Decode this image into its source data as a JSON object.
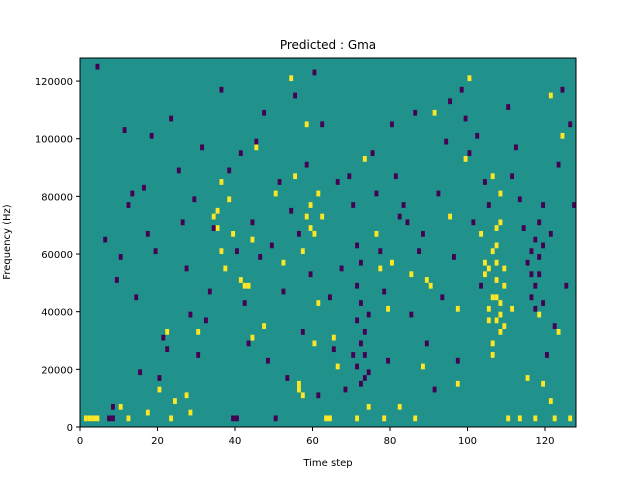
{
  "chart_data": {
    "type": "heatmap",
    "title": "Predicted : Gma",
    "xlabel": "Time step",
    "ylabel": "Frequency (Hz)",
    "xlim": [
      0,
      128
    ],
    "ylim": [
      0,
      128000
    ],
    "xticks": [
      0,
      20,
      40,
      60,
      80,
      100,
      120
    ],
    "yticks": [
      0,
      20000,
      40000,
      60000,
      80000,
      100000,
      120000
    ],
    "ytick_labels": [
      "0",
      "20000",
      "40000",
      "60000",
      "80000",
      "100000",
      "120000"
    ],
    "grid": false,
    "legend": "none",
    "n_time_steps": 128,
    "n_freq_bins": 64,
    "colormap": "viridis",
    "background_value": 0,
    "colors": {
      "low": "#440154",
      "mid": "#21918c",
      "high": "#fde725"
    },
    "cells": {
      "high": [
        [
          1,
          1
        ],
        [
          2,
          1
        ],
        [
          3,
          1
        ],
        [
          4,
          1
        ],
        [
          10,
          3
        ],
        [
          12,
          1
        ],
        [
          17,
          2
        ],
        [
          20,
          6
        ],
        [
          22,
          16
        ],
        [
          23,
          1
        ],
        [
          24,
          4
        ],
        [
          27,
          5
        ],
        [
          28,
          2
        ],
        [
          30,
          16
        ],
        [
          34,
          36
        ],
        [
          35,
          34
        ],
        [
          35,
          37
        ],
        [
          36,
          30
        ],
        [
          36,
          42
        ],
        [
          37,
          27
        ],
        [
          38,
          39
        ],
        [
          39,
          33
        ],
        [
          41,
          25
        ],
        [
          42,
          24
        ],
        [
          43,
          24
        ],
        [
          44,
          15
        ],
        [
          44,
          32
        ],
        [
          45,
          48
        ],
        [
          47,
          17
        ],
        [
          50,
          40
        ],
        [
          52,
          28
        ],
        [
          54,
          60
        ],
        [
          55,
          43
        ],
        [
          56,
          6
        ],
        [
          56,
          7
        ],
        [
          57,
          5
        ],
        [
          57,
          30
        ],
        [
          58,
          36
        ],
        [
          58,
          52
        ],
        [
          59,
          38
        ],
        [
          59,
          34
        ],
        [
          60,
          14
        ],
        [
          60,
          33
        ],
        [
          61,
          21
        ],
        [
          61,
          40
        ],
        [
          62,
          36
        ],
        [
          63,
          1
        ],
        [
          64,
          1
        ],
        [
          65,
          15
        ],
        [
          66,
          10
        ],
        [
          71,
          1
        ],
        [
          73,
          46
        ],
        [
          74,
          3
        ],
        [
          76,
          33
        ],
        [
          77,
          27
        ],
        [
          78,
          1
        ],
        [
          79,
          20
        ],
        [
          80,
          28
        ],
        [
          82,
          3
        ],
        [
          85,
          26
        ],
        [
          86,
          1
        ],
        [
          88,
          10
        ],
        [
          89,
          25
        ],
        [
          90,
          24
        ],
        [
          91,
          54
        ],
        [
          95,
          36
        ],
        [
          97,
          7
        ],
        [
          97,
          20
        ],
        [
          99,
          46
        ],
        [
          100,
          60
        ],
        [
          103,
          33
        ],
        [
          104,
          28
        ],
        [
          104,
          26
        ],
        [
          105,
          27
        ],
        [
          105,
          18
        ],
        [
          105,
          20
        ],
        [
          106,
          14
        ],
        [
          106,
          12
        ],
        [
          106,
          22
        ],
        [
          106,
          30
        ],
        [
          106,
          43
        ],
        [
          107,
          18
        ],
        [
          107,
          22
        ],
        [
          107,
          25
        ],
        [
          107,
          28
        ],
        [
          107,
          31
        ],
        [
          107,
          34
        ],
        [
          108,
          19
        ],
        [
          108,
          21
        ],
        [
          108,
          16
        ],
        [
          108,
          35
        ],
        [
          108,
          40
        ],
        [
          109,
          17
        ],
        [
          109,
          24
        ],
        [
          109,
          27
        ],
        [
          110,
          1
        ],
        [
          111,
          20
        ],
        [
          113,
          1
        ],
        [
          115,
          8
        ],
        [
          117,
          1
        ],
        [
          118,
          19
        ],
        [
          119,
          7
        ],
        [
          121,
          4
        ],
        [
          121,
          57
        ],
        [
          122,
          1
        ],
        [
          123,
          16
        ],
        [
          124,
          50
        ],
        [
          126,
          1
        ]
      ],
      "low": [
        [
          4,
          62
        ],
        [
          6,
          32
        ],
        [
          7,
          1
        ],
        [
          8,
          1
        ],
        [
          8,
          3
        ],
        [
          9,
          25
        ],
        [
          10,
          29
        ],
        [
          11,
          51
        ],
        [
          12,
          38
        ],
        [
          13,
          40
        ],
        [
          14,
          22
        ],
        [
          15,
          9
        ],
        [
          16,
          41
        ],
        [
          17,
          33
        ],
        [
          18,
          50
        ],
        [
          19,
          30
        ],
        [
          20,
          8
        ],
        [
          21,
          15
        ],
        [
          22,
          13
        ],
        [
          23,
          53
        ],
        [
          25,
          44
        ],
        [
          26,
          35
        ],
        [
          27,
          27
        ],
        [
          28,
          19
        ],
        [
          29,
          39
        ],
        [
          30,
          12
        ],
        [
          31,
          48
        ],
        [
          32,
          18
        ],
        [
          33,
          23
        ],
        [
          34,
          34
        ],
        [
          36,
          58
        ],
        [
          38,
          44
        ],
        [
          39,
          1
        ],
        [
          40,
          1
        ],
        [
          40,
          30
        ],
        [
          41,
          47
        ],
        [
          42,
          21
        ],
        [
          43,
          14
        ],
        [
          44,
          35
        ],
        [
          45,
          49
        ],
        [
          46,
          29
        ],
        [
          47,
          54
        ],
        [
          48,
          11
        ],
        [
          49,
          31
        ],
        [
          50,
          1
        ],
        [
          51,
          42
        ],
        [
          52,
          23
        ],
        [
          53,
          8
        ],
        [
          54,
          37
        ],
        [
          55,
          57
        ],
        [
          56,
          33
        ],
        [
          57,
          16
        ],
        [
          58,
          45
        ],
        [
          59,
          26
        ],
        [
          60,
          61
        ],
        [
          61,
          5
        ],
        [
          62,
          52
        ],
        [
          64,
          22
        ],
        [
          65,
          13
        ],
        [
          66,
          42
        ],
        [
          67,
          27
        ],
        [
          68,
          6
        ],
        [
          69,
          43
        ],
        [
          70,
          38
        ],
        [
          70,
          12
        ],
        [
          71,
          31
        ],
        [
          71,
          10
        ],
        [
          71,
          18
        ],
        [
          71,
          24
        ],
        [
          72,
          7
        ],
        [
          72,
          14
        ],
        [
          72,
          21
        ],
        [
          72,
          28
        ],
        [
          73,
          16
        ],
        [
          73,
          12
        ],
        [
          73,
          8
        ],
        [
          74,
          9
        ],
        [
          74,
          19
        ],
        [
          75,
          47
        ],
        [
          76,
          40
        ],
        [
          77,
          30
        ],
        [
          78,
          23
        ],
        [
          79,
          11
        ],
        [
          80,
          52
        ],
        [
          81,
          43
        ],
        [
          82,
          36
        ],
        [
          83,
          38
        ],
        [
          84,
          35
        ],
        [
          85,
          19
        ],
        [
          86,
          54
        ],
        [
          87,
          30
        ],
        [
          88,
          33
        ],
        [
          89,
          14
        ],
        [
          91,
          6
        ],
        [
          92,
          40
        ],
        [
          93,
          22
        ],
        [
          94,
          49
        ],
        [
          95,
          56
        ],
        [
          96,
          29
        ],
        [
          97,
          11
        ],
        [
          98,
          58
        ],
        [
          99,
          53
        ],
        [
          100,
          47
        ],
        [
          101,
          35
        ],
        [
          102,
          50
        ],
        [
          103,
          24
        ],
        [
          104,
          42
        ],
        [
          105,
          38
        ],
        [
          110,
          55
        ],
        [
          111,
          43
        ],
        [
          112,
          48
        ],
        [
          113,
          39
        ],
        [
          114,
          34
        ],
        [
          115,
          28
        ],
        [
          116,
          22
        ],
        [
          116,
          26
        ],
        [
          116,
          30
        ],
        [
          117,
          24
        ],
        [
          117,
          20
        ],
        [
          117,
          32
        ],
        [
          118,
          26
        ],
        [
          118,
          29
        ],
        [
          118,
          35
        ],
        [
          119,
          21
        ],
        [
          119,
          31
        ],
        [
          119,
          38
        ],
        [
          120,
          12
        ],
        [
          121,
          33
        ],
        [
          122,
          17
        ],
        [
          123,
          45
        ],
        [
          124,
          58
        ],
        [
          125,
          24
        ],
        [
          126,
          52
        ],
        [
          127,
          38
        ]
      ]
    }
  }
}
